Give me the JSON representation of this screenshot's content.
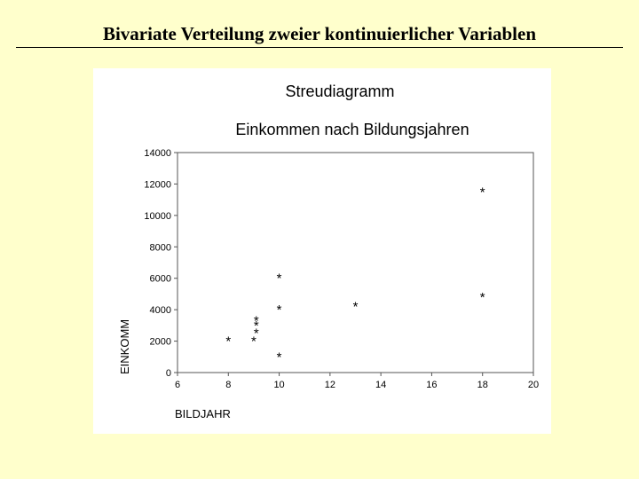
{
  "slide": {
    "title": "Bivariate Verteilung zweier kontinuierlicher Variablen"
  },
  "chart_data": {
    "type": "scatter",
    "title": "Streudiagramm",
    "subtitle": "Einkommen nach Bildungsjahren",
    "xlabel": "BILDJAHR",
    "ylabel": "EINKOMM",
    "xlim": [
      6,
      20
    ],
    "ylim": [
      0,
      14000
    ],
    "xticks": [
      "6",
      "8",
      "10",
      "12",
      "14",
      "16",
      "18",
      "20"
    ],
    "yticks": [
      "0",
      "2000",
      "4000",
      "6000",
      "8000",
      "10000",
      "12000",
      "14000"
    ],
    "grid": false,
    "legend": "none",
    "marker": "*",
    "points": [
      {
        "x": 8,
        "y": 2000
      },
      {
        "x": 9,
        "y": 2000
      },
      {
        "x": 9.1,
        "y": 2500
      },
      {
        "x": 9.1,
        "y": 3000
      },
      {
        "x": 9.1,
        "y": 3300
      },
      {
        "x": 10,
        "y": 1000
      },
      {
        "x": 10,
        "y": 4000
      },
      {
        "x": 10,
        "y": 6000
      },
      {
        "x": 13,
        "y": 4200
      },
      {
        "x": 18,
        "y": 4800
      },
      {
        "x": 18,
        "y": 11500
      }
    ]
  }
}
